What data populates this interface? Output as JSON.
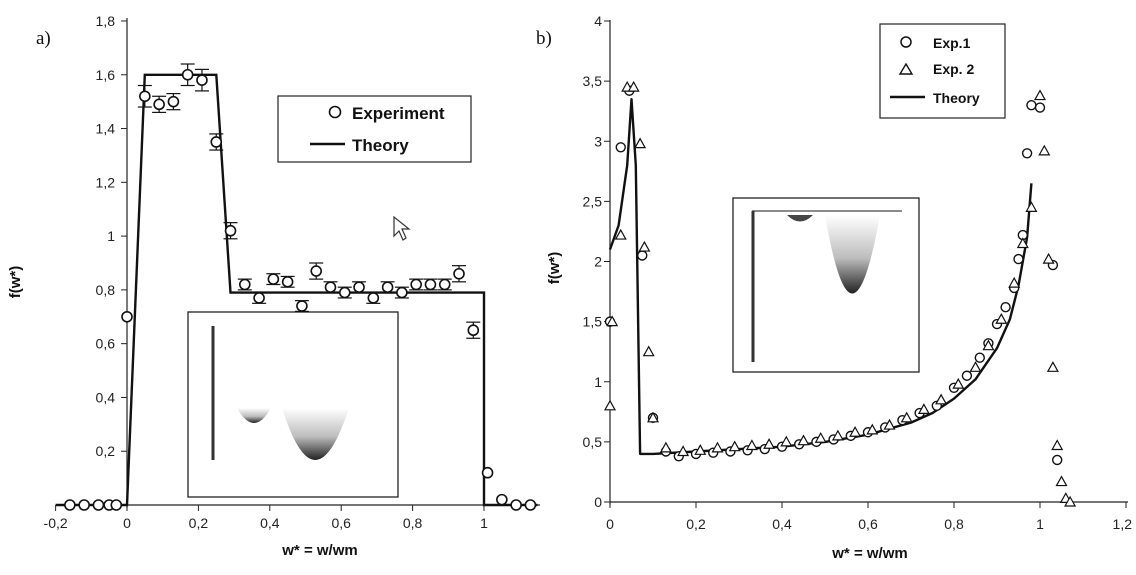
{
  "chart_data": [
    {
      "panel_label": "a)",
      "type": "scatter",
      "xlabel": "w* = w/wm",
      "ylabel": "f(w*)",
      "xlim": [
        -0.2,
        1.15
      ],
      "ylim": [
        0,
        1.8
      ],
      "x_ticks": [
        "-0,2",
        "0",
        "0,2",
        "0,4",
        "0,6",
        "0,8",
        "1"
      ],
      "y_ticks": [
        "0",
        "0,2",
        "0,4",
        "0,6",
        "0,8",
        "1",
        "1,2",
        "1,4",
        "1,6",
        "1,8"
      ],
      "legend": {
        "position": "upper-right",
        "entries": [
          "Experiment",
          "Theory"
        ]
      },
      "series": [
        {
          "name": "Experiment",
          "marker": "circle",
          "error_bars": true,
          "x": [
            -0.16,
            -0.12,
            -0.08,
            -0.05,
            -0.03,
            0.0,
            0.05,
            0.09,
            0.13,
            0.17,
            0.21,
            0.25,
            0.29,
            0.33,
            0.37,
            0.41,
            0.45,
            0.49,
            0.53,
            0.57,
            0.61,
            0.65,
            0.69,
            0.73,
            0.77,
            0.81,
            0.85,
            0.89,
            0.93,
            0.97,
            1.01,
            1.05,
            1.09,
            1.13
          ],
          "y": [
            0.0,
            0.0,
            0.0,
            0.0,
            0.0,
            0.7,
            1.52,
            1.49,
            1.5,
            1.6,
            1.58,
            1.35,
            1.02,
            0.82,
            0.77,
            0.84,
            0.83,
            0.74,
            0.87,
            0.81,
            0.79,
            0.81,
            0.77,
            0.81,
            0.79,
            0.82,
            0.82,
            0.82,
            0.86,
            0.65,
            0.12,
            0.02,
            0.0,
            0.0
          ],
          "err": [
            0,
            0,
            0,
            0,
            0,
            0,
            0.04,
            0.03,
            0.03,
            0.04,
            0.04,
            0.03,
            0.03,
            0.02,
            0.02,
            0.02,
            0.02,
            0.02,
            0.03,
            0.02,
            0.02,
            0.02,
            0.02,
            0.02,
            0.02,
            0.02,
            0.02,
            0.02,
            0.03,
            0.03,
            0,
            0,
            0,
            0
          ]
        },
        {
          "name": "Theory",
          "style": "line",
          "x": [
            -0.2,
            0.0,
            0.05,
            0.25,
            0.29,
            1.0,
            1.0,
            1.15
          ],
          "y": [
            0.0,
            0.0,
            1.6,
            1.6,
            0.79,
            0.79,
            0.0,
            0.0
          ]
        }
      ]
    },
    {
      "panel_label": "b)",
      "type": "scatter",
      "xlabel": "w* = w/wm",
      "ylabel": "f(w*)",
      "xlim": [
        0,
        1.2
      ],
      "ylim": [
        0,
        4
      ],
      "x_ticks": [
        "0",
        "0,2",
        "0,4",
        "0,6",
        "0,8",
        "1",
        "1,2"
      ],
      "y_ticks": [
        "0",
        "0,5",
        "1",
        "1,5",
        "2",
        "2,5",
        "3",
        "3,5",
        "4"
      ],
      "legend": {
        "position": "upper-right",
        "entries": [
          "Exp.1",
          "Exp. 2",
          "Theory"
        ]
      },
      "series": [
        {
          "name": "Exp.1",
          "marker": "circle",
          "x": [
            0.0,
            0.025,
            0.045,
            0.075,
            0.1,
            0.13,
            0.16,
            0.2,
            0.24,
            0.28,
            0.32,
            0.36,
            0.4,
            0.44,
            0.48,
            0.52,
            0.56,
            0.6,
            0.64,
            0.68,
            0.72,
            0.76,
            0.8,
            0.83,
            0.86,
            0.88,
            0.9,
            0.92,
            0.94,
            0.95,
            0.96,
            0.97,
            0.98,
            1.0,
            1.03,
            1.04
          ],
          "y": [
            1.5,
            2.95,
            3.42,
            2.05,
            0.7,
            0.42,
            0.38,
            0.4,
            0.41,
            0.42,
            0.43,
            0.44,
            0.46,
            0.48,
            0.5,
            0.52,
            0.55,
            0.58,
            0.62,
            0.68,
            0.74,
            0.8,
            0.95,
            1.05,
            1.2,
            1.32,
            1.48,
            1.62,
            1.78,
            2.02,
            2.22,
            2.9,
            3.3,
            3.28,
            1.97,
            0.35
          ],
          "exp1_labels": [
            "0",
            "0,2",
            "0,4",
            "0,6",
            "0,8",
            "1",
            "1,2"
          ]
        },
        {
          "name": "Exp. 2",
          "marker": "triangle",
          "x": [
            0.0,
            0.005,
            0.025,
            0.04,
            0.055,
            0.07,
            0.08,
            0.09,
            0.1,
            0.13,
            0.17,
            0.21,
            0.25,
            0.29,
            0.33,
            0.37,
            0.41,
            0.45,
            0.49,
            0.53,
            0.57,
            0.61,
            0.65,
            0.69,
            0.73,
            0.77,
            0.81,
            0.85,
            0.88,
            0.91,
            0.94,
            0.96,
            0.98,
            1.0,
            1.01,
            1.02,
            1.03,
            1.04,
            1.05,
            1.06,
            1.07
          ],
          "y": [
            0.8,
            1.5,
            2.22,
            3.45,
            3.45,
            2.98,
            2.12,
            1.25,
            0.7,
            0.45,
            0.42,
            0.43,
            0.45,
            0.46,
            0.47,
            0.48,
            0.5,
            0.51,
            0.53,
            0.55,
            0.58,
            0.6,
            0.64,
            0.7,
            0.77,
            0.85,
            0.98,
            1.12,
            1.3,
            1.52,
            1.82,
            2.15,
            2.45,
            3.38,
            2.92,
            2.02,
            1.12,
            0.47,
            0.17,
            0.03,
            0.0
          ]
        },
        {
          "name": "Theory",
          "style": "line",
          "x": [
            0.0,
            0.02,
            0.04,
            0.05,
            0.06,
            0.07,
            0.1,
            0.2,
            0.3,
            0.4,
            0.5,
            0.6,
            0.7,
            0.75,
            0.8,
            0.85,
            0.9,
            0.93,
            0.95,
            0.97,
            0.98
          ],
          "y": [
            2.1,
            2.3,
            2.8,
            3.35,
            2.8,
            0.4,
            0.4,
            0.42,
            0.44,
            0.46,
            0.5,
            0.56,
            0.66,
            0.74,
            0.86,
            1.02,
            1.28,
            1.52,
            1.8,
            2.2,
            2.65
          ]
        }
      ]
    }
  ]
}
